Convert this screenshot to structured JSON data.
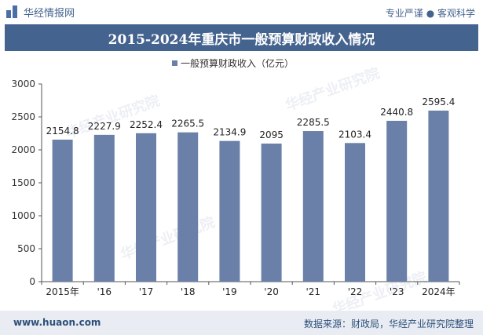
{
  "header": {
    "brand": "华经情报网",
    "tagline": "专业严谨 ● 客观科学"
  },
  "watermark": "华经产业研究院",
  "chart_data": {
    "type": "bar",
    "title": "2015-2024年重庆市一般预算财政收入情况",
    "legend": "一般预算财政收入（亿元）",
    "legend_position": "top-center",
    "categories": [
      "2015年",
      "'16",
      "'17",
      "'18",
      "'19",
      "'20",
      "'21",
      "'22",
      "'23",
      "2024年"
    ],
    "series": [
      {
        "name": "一般预算财政收入（亿元）",
        "values": [
          2154.8,
          2227.9,
          2252.4,
          2265.5,
          2134.9,
          2095,
          2285.5,
          2103.4,
          2440.8,
          2595.4
        ],
        "labels": [
          "2154.8",
          "2227.9",
          "2252.4",
          "2265.5",
          "2134.9",
          "2095",
          "2285.5",
          "2103.4",
          "2440.8",
          "2595.4"
        ]
      }
    ],
    "ylim": [
      0,
      3000
    ],
    "yticks": [
      0,
      500,
      1000,
      1500,
      2000,
      2500,
      3000
    ],
    "grid": false,
    "bar_color": "#6a80a8"
  },
  "footer": {
    "website": "www.huaon.com",
    "source": "数据来源：财政局，华经产业研究院整理"
  }
}
